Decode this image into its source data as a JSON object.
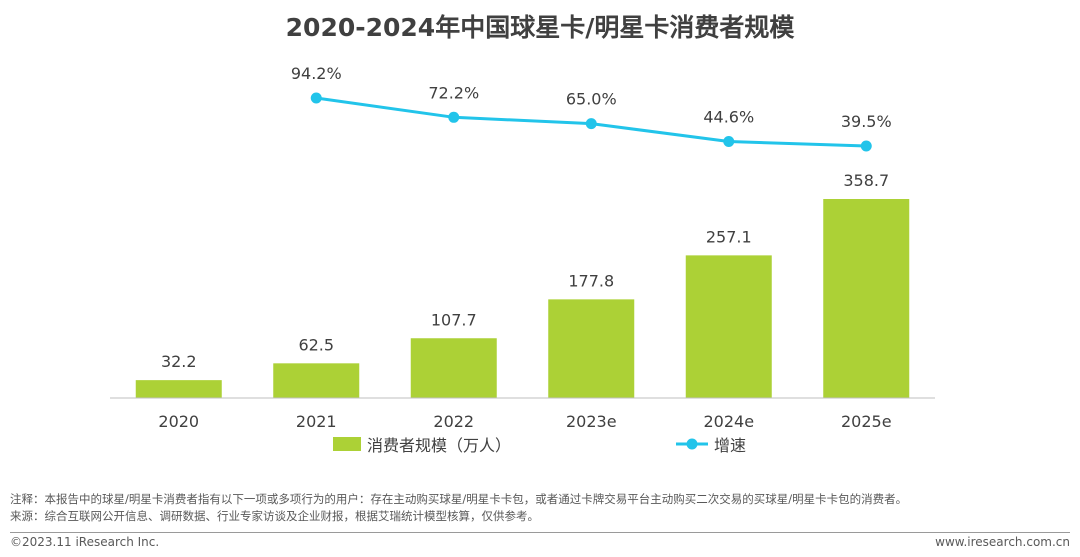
{
  "title": "2020-2024年中国球星卡/明星卡消费者规模",
  "chart_data": {
    "type": "bar+line",
    "title": "2020-2024年中国球星卡/明星卡消费者规模",
    "categories": [
      "2020",
      "2021",
      "2022",
      "2023e",
      "2024e",
      "2025e"
    ],
    "series": [
      {
        "name": "消费者规模（万人）",
        "type": "bar",
        "color": "#acd136",
        "values": [
          32.2,
          62.5,
          107.7,
          177.8,
          257.1,
          358.7
        ],
        "labels": [
          "32.2",
          "62.5",
          "107.7",
          "177.8",
          "257.1",
          "358.7"
        ]
      },
      {
        "name": "增速",
        "type": "line",
        "color": "#22c4ea",
        "values": [
          null,
          94.2,
          72.2,
          65.0,
          44.6,
          39.5
        ],
        "labels": [
          null,
          "94.2%",
          "72.2%",
          "65.0%",
          "44.6%",
          "39.5%"
        ]
      }
    ],
    "legend": [
      "消费者规模（万人）",
      "增速"
    ],
    "legend_position": "bottom"
  },
  "notes": {
    "note": "注释：本报告中的球星/明星卡消费者指有以下一项或多项行为的用户：存在主动购买球星/明星卡卡包，或者通过卡牌交易平台主动购买二次交易的买球星/明星卡卡包的消费者。",
    "source": "来源：综合互联网公开信息、调研数据、行业专家访谈及企业财报，根据艾瑞统计模型核算，仅供参考。"
  },
  "footer": {
    "copyright": "©2023.11 iResearch Inc.",
    "website": "www.iresearch.com.cn"
  }
}
